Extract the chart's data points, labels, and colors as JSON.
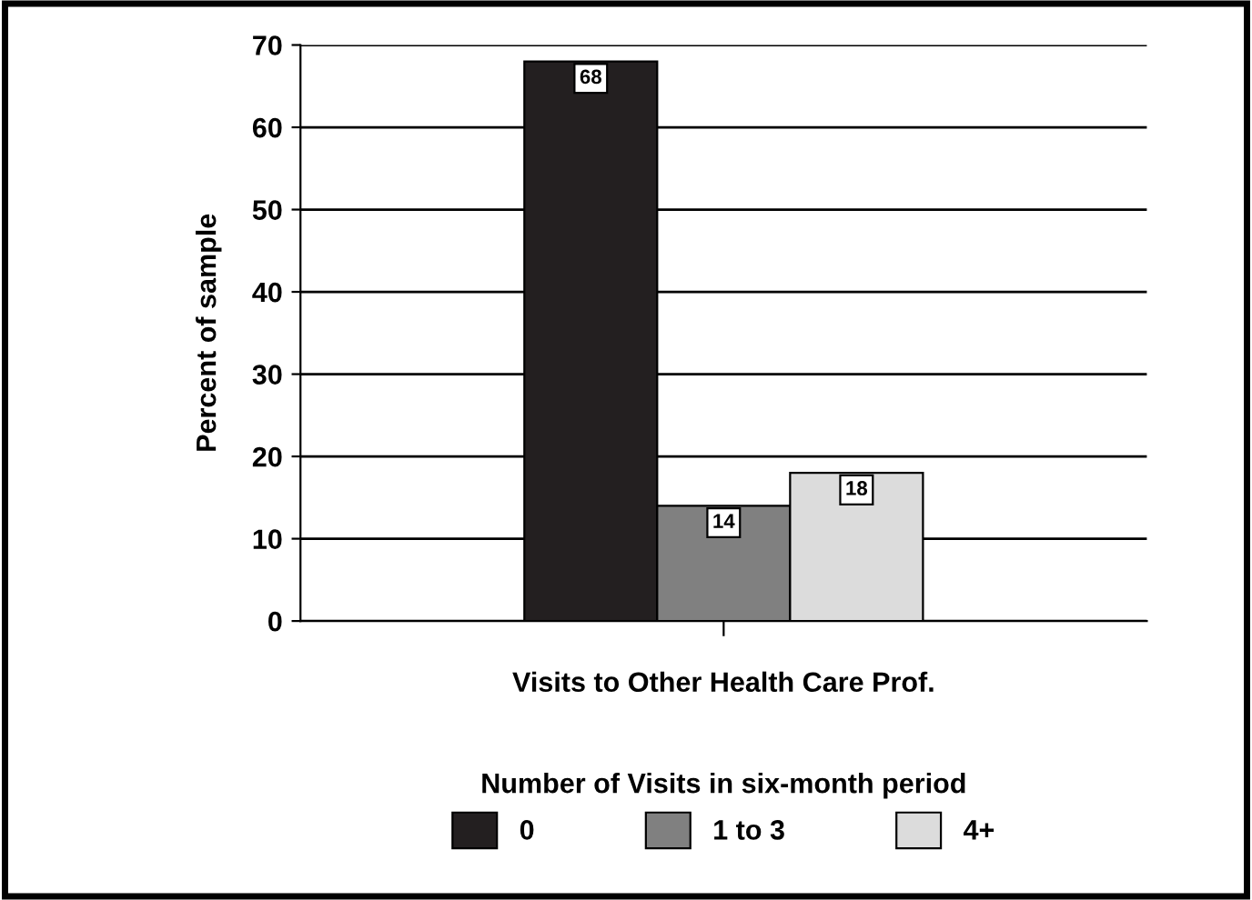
{
  "chart_data": {
    "type": "bar",
    "categories": [
      "Visits to Other Health Care Prof."
    ],
    "series": [
      {
        "name": "0",
        "color": "#231f20",
        "values": [
          68
        ]
      },
      {
        "name": "1 to 3",
        "color": "#808080",
        "values": [
          14
        ]
      },
      {
        "name": "4+",
        "color": "#dcdcdc",
        "values": [
          18
        ]
      }
    ],
    "ylabel": "Percent of sample",
    "legend_title": "Number of Visits in six-month period",
    "legend": "bottom",
    "data_labels": true,
    "ylim": [
      0,
      70
    ],
    "yticks": [
      0,
      10,
      20,
      30,
      40,
      50,
      60,
      70
    ],
    "grid": "y"
  }
}
